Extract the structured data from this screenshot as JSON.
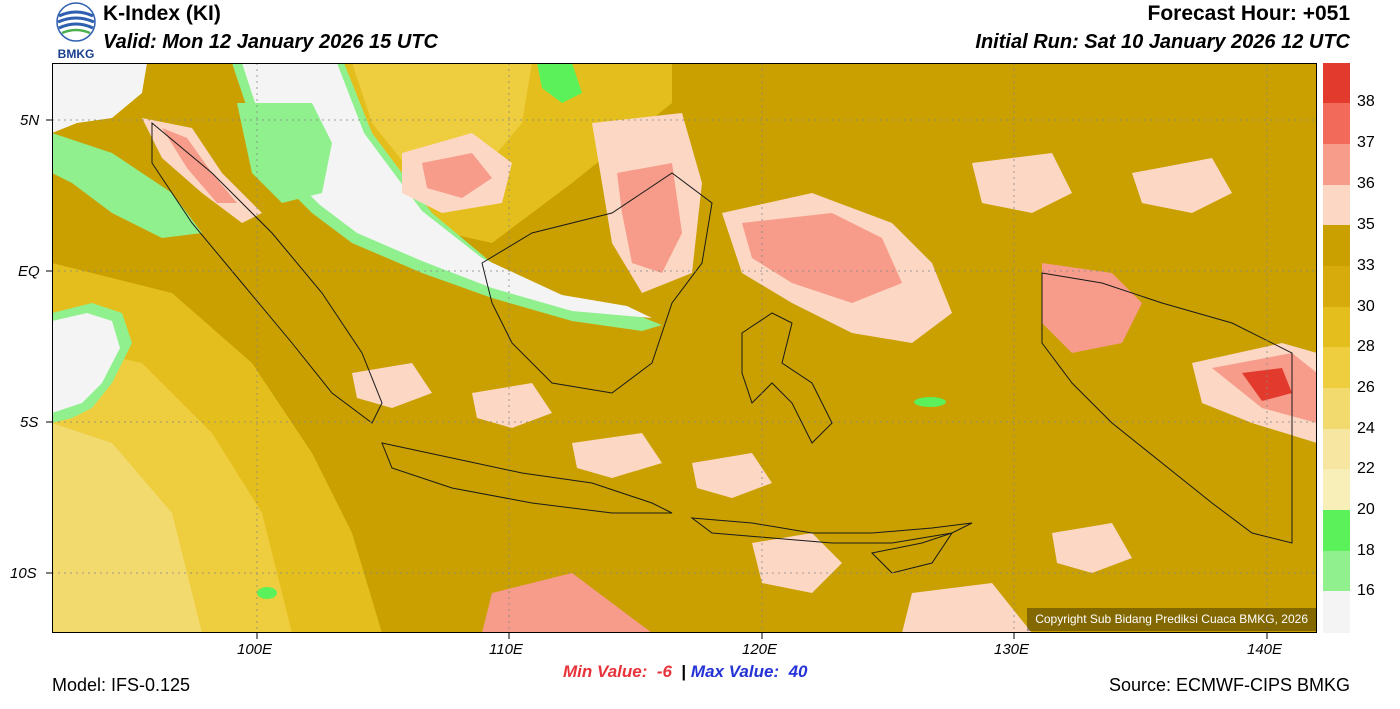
{
  "header": {
    "title": "K-Index (KI)",
    "valid": "Valid: Mon 12 January 2026 15 UTC",
    "forecast_hour": "Forecast Hour: +051",
    "initial_run": "Initial Run: Sat 10 January 2026 12 UTC"
  },
  "logo": {
    "text": "BMKG",
    "icon": "bmkg-logo-icon"
  },
  "map": {
    "latitude_labels": [
      "5N",
      "EQ",
      "5S",
      "10S"
    ],
    "longitude_labels": [
      "100E",
      "110E",
      "120E",
      "130E",
      "140E"
    ],
    "copyright": "Copyright Sub Bidang Prediksi Cuaca BMKG, 2026"
  },
  "colorbar": {
    "levels": [
      "38",
      "37",
      "36",
      "35",
      "33",
      "30",
      "28",
      "26",
      "24",
      "22",
      "20",
      "18",
      "16"
    ],
    "colors": {
      "above_38": "#e23a2c",
      "c38": "#f26a5a",
      "c37": "#f79b8a",
      "c36": "#fcd7c4",
      "c35": "#c9a000",
      "c33": "#d6ab0b",
      "c30": "#e3be1c",
      "c28": "#eecd3e",
      "c26": "#f3da6e",
      "c24": "#f6e6a2",
      "c22": "#f8efb8",
      "c20": "#5bf15b",
      "c18": "#90f08e",
      "c16": "#c4f4c0",
      "below_16": "#f4f4f4"
    }
  },
  "stats": {
    "min_label": "Min Value:",
    "min_value": "-6",
    "separator": "|",
    "max_label": "Max Value:",
    "max_value": "40"
  },
  "footer": {
    "model": "Model: IFS-0.125",
    "source": "Source: ECMWF-CIPS BMKG"
  }
}
